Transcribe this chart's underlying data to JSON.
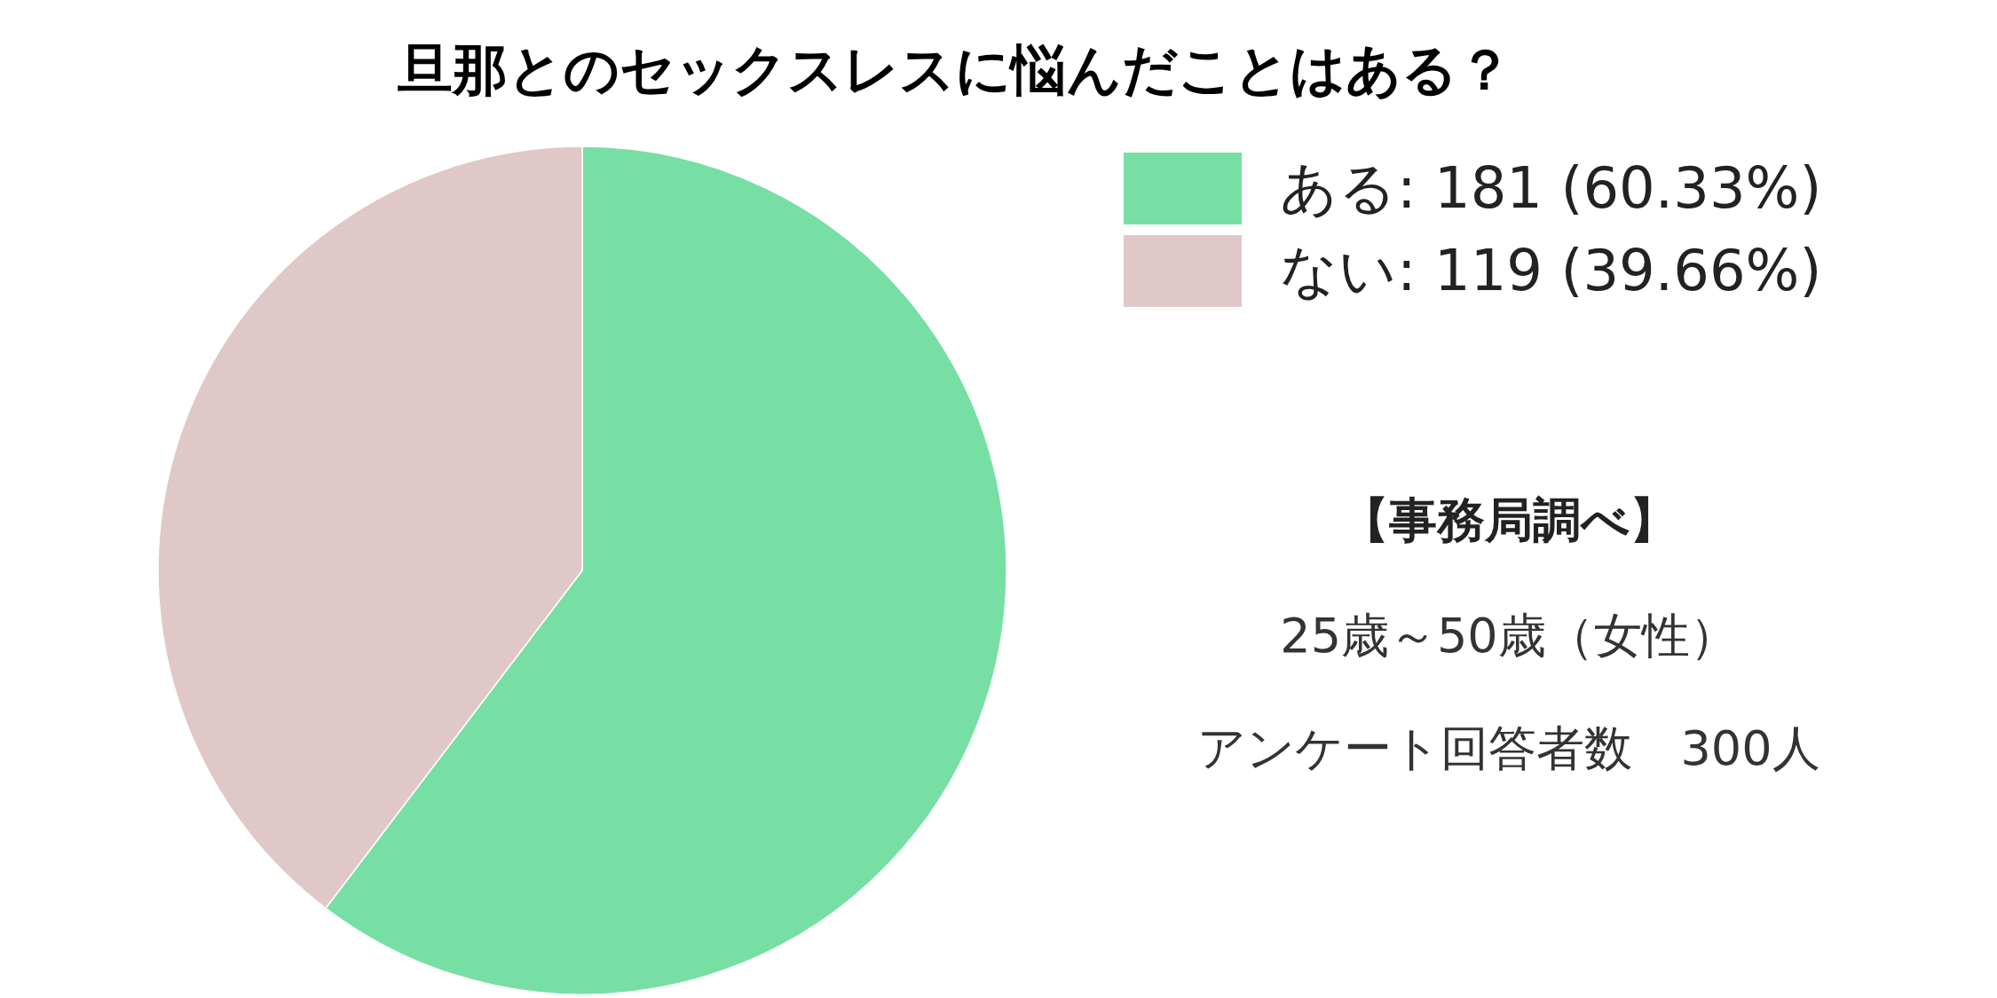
{
  "chart_data": {
    "type": "pie",
    "title": "旦那とのセックスレスに悩んだことはある？",
    "categories": [
      "ある",
      "ない"
    ],
    "values": [
      181,
      119
    ],
    "value_labels": [
      "181 (60.33%)",
      "119 (39.66%)"
    ],
    "colors": [
      "#77dfa4",
      "#e0c8c8"
    ],
    "legend": "top right",
    "annotations": [
      "【事務局調べ】",
      "25歳～50歳（女性）",
      "アンケート回答者数　300人"
    ]
  }
}
